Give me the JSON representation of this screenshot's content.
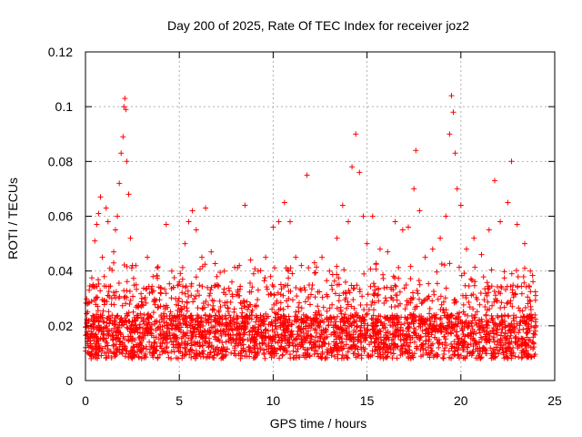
{
  "chart_data": {
    "type": "scatter",
    "title": "Day 200 of 2025, Rate Of TEC Index for receiver joz2",
    "xlabel": "GPS time / hours",
    "ylabel": "ROTI / TECUs",
    "xlim": [
      0,
      25
    ],
    "ylim": [
      0,
      0.12
    ],
    "x_ticks": [
      0,
      5,
      10,
      15,
      20,
      25
    ],
    "y_ticks": [
      0,
      0.02,
      0.04,
      0.06,
      0.08,
      0.1,
      0.12
    ],
    "x_tick_labels": [
      "0",
      "5",
      "10",
      "15",
      "20",
      "25"
    ],
    "y_tick_labels": [
      "0",
      "0.02",
      "0.04",
      "0.06",
      "0.08",
      "0.1",
      "0.12"
    ],
    "grid": true,
    "marker": "plus",
    "color": "#ff0000",
    "series": [
      {
        "points": [
          [
            0.0,
            0.012
          ],
          [
            0.1,
            0.028
          ],
          [
            0.2,
            0.033
          ],
          [
            0.3,
            0.018
          ],
          [
            0.4,
            0.035
          ],
          [
            0.5,
            0.051
          ],
          [
            0.6,
            0.057
          ],
          [
            0.7,
            0.061
          ],
          [
            0.8,
            0.067
          ],
          [
            0.9,
            0.045
          ],
          [
            1.0,
            0.038
          ],
          [
            1.1,
            0.063
          ],
          [
            1.2,
            0.058
          ],
          [
            1.3,
            0.041
          ],
          [
            1.4,
            0.03
          ],
          [
            1.5,
            0.047
          ],
          [
            1.6,
            0.055
          ],
          [
            1.7,
            0.06
          ],
          [
            1.8,
            0.072
          ],
          [
            1.9,
            0.083
          ],
          [
            2.0,
            0.089
          ],
          [
            2.05,
            0.1
          ],
          [
            2.1,
            0.103
          ],
          [
            2.15,
            0.099
          ],
          [
            2.2,
            0.08
          ],
          [
            2.3,
            0.068
          ],
          [
            2.4,
            0.052
          ],
          [
            2.5,
            0.042
          ],
          [
            2.7,
            0.035
          ],
          [
            3.0,
            0.03
          ],
          [
            3.3,
            0.045
          ],
          [
            3.6,
            0.038
          ],
          [
            4.0,
            0.032
          ],
          [
            4.3,
            0.057
          ],
          [
            4.6,
            0.04
          ],
          [
            5.0,
            0.036
          ],
          [
            5.3,
            0.05
          ],
          [
            5.5,
            0.058
          ],
          [
            5.7,
            0.062
          ],
          [
            5.9,
            0.055
          ],
          [
            6.2,
            0.045
          ],
          [
            6.4,
            0.063
          ],
          [
            6.7,
            0.047
          ],
          [
            7.0,
            0.038
          ],
          [
            7.4,
            0.04
          ],
          [
            7.8,
            0.036
          ],
          [
            8.2,
            0.042
          ],
          [
            8.5,
            0.064
          ],
          [
            8.8,
            0.044
          ],
          [
            9.2,
            0.04
          ],
          [
            9.6,
            0.045
          ],
          [
            10.0,
            0.056
          ],
          [
            10.3,
            0.058
          ],
          [
            10.6,
            0.065
          ],
          [
            10.9,
            0.058
          ],
          [
            11.2,
            0.045
          ],
          [
            11.5,
            0.042
          ],
          [
            11.8,
            0.075
          ],
          [
            12.2,
            0.043
          ],
          [
            12.6,
            0.045
          ],
          [
            13.0,
            0.04
          ],
          [
            13.4,
            0.052
          ],
          [
            13.7,
            0.064
          ],
          [
            14.0,
            0.058
          ],
          [
            14.2,
            0.078
          ],
          [
            14.4,
            0.09
          ],
          [
            14.6,
            0.076
          ],
          [
            14.8,
            0.06
          ],
          [
            15.0,
            0.05
          ],
          [
            15.3,
            0.06
          ],
          [
            15.7,
            0.048
          ],
          [
            16.1,
            0.047
          ],
          [
            16.5,
            0.058
          ],
          [
            16.9,
            0.055
          ],
          [
            17.2,
            0.056
          ],
          [
            17.5,
            0.07
          ],
          [
            17.6,
            0.084
          ],
          [
            17.8,
            0.062
          ],
          [
            18.1,
            0.045
          ],
          [
            18.5,
            0.048
          ],
          [
            18.9,
            0.052
          ],
          [
            19.2,
            0.06
          ],
          [
            19.4,
            0.09
          ],
          [
            19.5,
            0.104
          ],
          [
            19.6,
            0.098
          ],
          [
            19.7,
            0.083
          ],
          [
            19.8,
            0.07
          ],
          [
            20.0,
            0.064
          ],
          [
            20.3,
            0.048
          ],
          [
            20.7,
            0.052
          ],
          [
            21.1,
            0.046
          ],
          [
            21.5,
            0.055
          ],
          [
            21.8,
            0.073
          ],
          [
            22.1,
            0.058
          ],
          [
            22.5,
            0.065
          ],
          [
            22.7,
            0.08
          ],
          [
            23.0,
            0.057
          ],
          [
            23.4,
            0.05
          ],
          [
            23.7,
            0.04
          ],
          [
            24.0,
            0.02
          ]
        ]
      }
    ]
  }
}
